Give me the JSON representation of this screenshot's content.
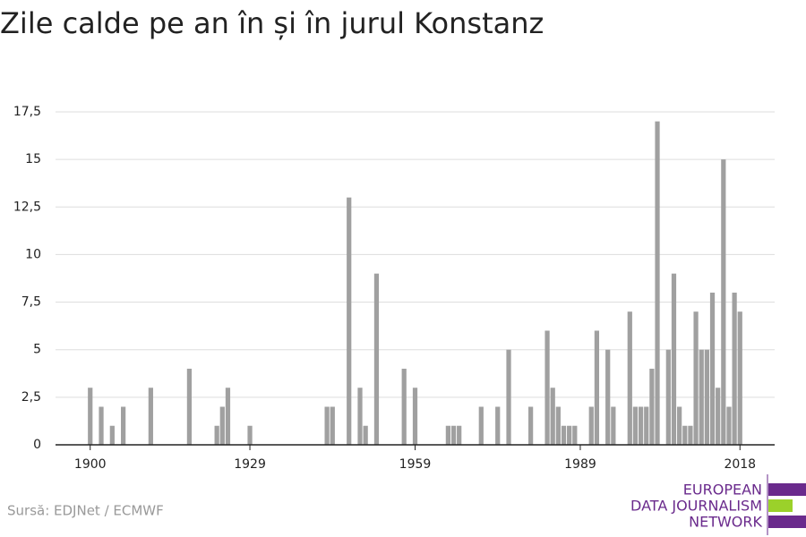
{
  "chart_data": {
    "type": "bar",
    "title": "Zile calde pe an în și în jurul Konstanz",
    "x": [
      1900,
      1902,
      1904,
      1906,
      1911,
      1918,
      1923,
      1924,
      1925,
      1929,
      1943,
      1944,
      1947,
      1949,
      1950,
      1952,
      1957,
      1959,
      1965,
      1966,
      1967,
      1971,
      1974,
      1976,
      1980,
      1983,
      1984,
      1985,
      1986,
      1987,
      1988,
      1991,
      1992,
      1994,
      1995,
      1998,
      1999,
      2000,
      2001,
      2002,
      2003,
      2005,
      2006,
      2007,
      2008,
      2009,
      2010,
      2011,
      2012,
      2013,
      2014,
      2015,
      2016,
      2017,
      2018
    ],
    "values": [
      3,
      2,
      1,
      2,
      3,
      4,
      1,
      2,
      3,
      1,
      2,
      2,
      13,
      3,
      1,
      9,
      4,
      3,
      1,
      1,
      1,
      2,
      2,
      5,
      2,
      6,
      3,
      2,
      1,
      1,
      1,
      2,
      6,
      5,
      2,
      7,
      2,
      2,
      2,
      4,
      17,
      5,
      9,
      2,
      1,
      1,
      7,
      5,
      5,
      8,
      3,
      15,
      2,
      8,
      7
    ],
    "color": "#a0a0a0",
    "xlim": [
      1893.7,
      2024.3
    ],
    "xticks": [
      1900,
      1929,
      1959,
      1989,
      2018
    ],
    "ylim": [
      0,
      17.5
    ],
    "yticks": [
      0,
      {
        "value": 2.5,
        "label": "2,5"
      },
      5,
      {
        "value": 7.5,
        "label": "7,5"
      },
      10,
      {
        "value": 12.5,
        "label": "12,5"
      },
      15,
      {
        "value": 17.5,
        "label": "17,5"
      }
    ],
    "grid": true
  },
  "source": "Sursă: EDJNet / ECMWF",
  "logo": {
    "lines": [
      "EUROPEAN",
      "DATA JOURNALISM",
      "NETWORK"
    ]
  }
}
